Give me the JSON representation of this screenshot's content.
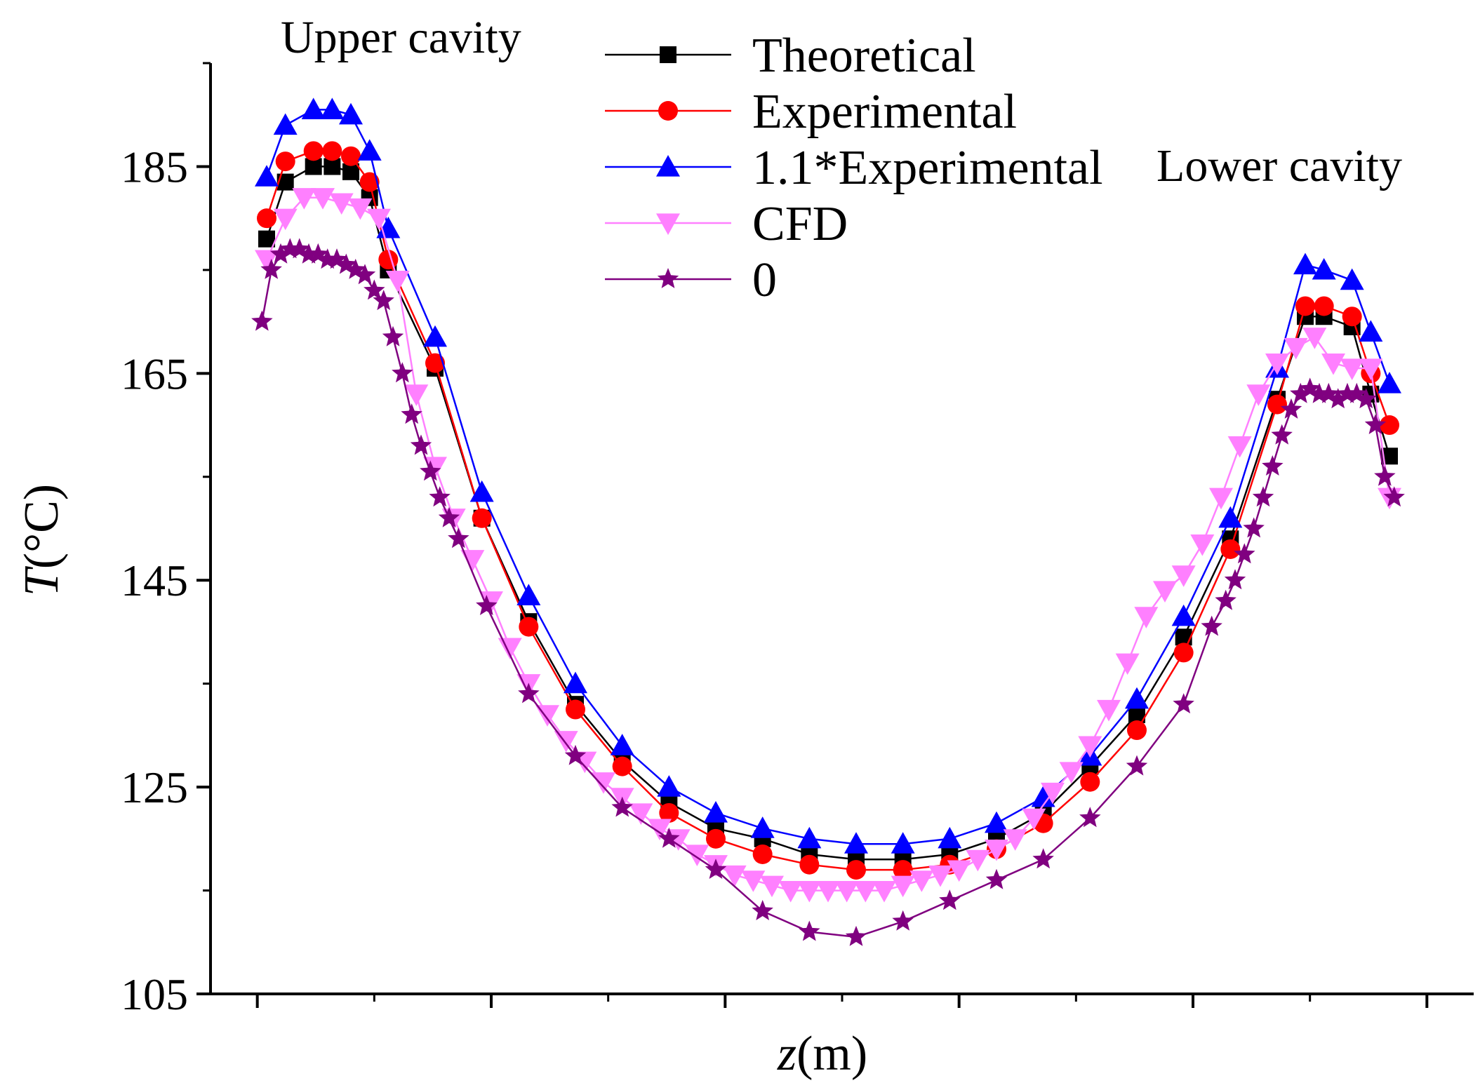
{
  "chart_data": {
    "type": "line",
    "title": "",
    "xlabel": {
      "italic": "z",
      "rest": "(m)"
    },
    "ylabel": {
      "italic": "T",
      "rest": "(°C)"
    },
    "ylim": [
      105,
      195
    ],
    "yticks": [
      105,
      125,
      145,
      165,
      185
    ],
    "xlim": [
      -0.05,
      1.3
    ],
    "x_tick_labels_visible": false,
    "annotations": [
      {
        "text": "Upper cavity",
        "position": "top-left"
      },
      {
        "text": "Lower cavity",
        "position": "top-right"
      }
    ],
    "legend_position": "top-center",
    "colors": {
      "Theoretical": "#000000",
      "Experimental": "#ff0000",
      "1.1*Experimental": "#0000ff",
      "CFD": "#ff80ff",
      "0": "#800080"
    },
    "series": [
      {
        "name": "Theoretical",
        "marker": "square",
        "x": [
          0.01,
          0.03,
          0.06,
          0.08,
          0.1,
          0.12,
          0.14,
          0.19,
          0.24,
          0.29,
          0.34,
          0.39,
          0.44,
          0.49,
          0.54,
          0.59,
          0.64,
          0.69,
          0.74,
          0.79,
          0.84,
          0.89,
          0.94,
          0.99,
          1.04,
          1.09,
          1.12,
          1.14,
          1.17,
          1.19,
          1.21
        ],
        "values": [
          178,
          183.5,
          185,
          185,
          184.5,
          182,
          175,
          165.5,
          151,
          141,
          133,
          127.5,
          123.5,
          121,
          120,
          118.5,
          118,
          118,
          118.5,
          120,
          122.5,
          127,
          132,
          139.5,
          149,
          162.5,
          170.5,
          170.5,
          169.5,
          163,
          157
        ]
      },
      {
        "name": "Experimental",
        "marker": "circle",
        "x": [
          0.01,
          0.03,
          0.06,
          0.08,
          0.1,
          0.12,
          0.14,
          0.19,
          0.24,
          0.29,
          0.34,
          0.39,
          0.44,
          0.49,
          0.54,
          0.59,
          0.64,
          0.69,
          0.74,
          0.79,
          0.84,
          0.89,
          0.94,
          0.99,
          1.04,
          1.09,
          1.12,
          1.14,
          1.17,
          1.19,
          1.21
        ],
        "values": [
          180,
          185.5,
          186.5,
          186.5,
          186,
          183.5,
          176,
          166,
          151,
          140.5,
          132.5,
          127,
          122.5,
          120,
          118.5,
          117.5,
          117,
          117,
          117.5,
          119,
          121.5,
          125.5,
          130.5,
          138,
          148,
          162,
          171.5,
          171.5,
          170.5,
          165,
          160
        ]
      },
      {
        "name": "1.1*Experimental",
        "marker": "triangle-up",
        "x": [
          0.01,
          0.03,
          0.06,
          0.08,
          0.1,
          0.12,
          0.14,
          0.19,
          0.24,
          0.29,
          0.34,
          0.39,
          0.44,
          0.49,
          0.54,
          0.59,
          0.64,
          0.69,
          0.74,
          0.79,
          0.84,
          0.89,
          0.94,
          0.99,
          1.04,
          1.09,
          1.12,
          1.14,
          1.17,
          1.19,
          1.21
        ],
        "values": [
          184,
          189,
          190.5,
          190.5,
          190,
          186.5,
          179,
          168.5,
          153.5,
          143.5,
          135,
          129,
          125,
          122.5,
          121,
          120,
          119.5,
          119.5,
          120,
          121.5,
          124,
          128,
          133.5,
          141.5,
          151,
          165.5,
          175.5,
          175,
          174,
          169,
          164
        ]
      },
      {
        "name": "CFD",
        "marker": "triangle-down",
        "x": [
          0.01,
          0.03,
          0.05,
          0.07,
          0.09,
          0.11,
          0.13,
          0.15,
          0.17,
          0.19,
          0.21,
          0.23,
          0.25,
          0.27,
          0.29,
          0.31,
          0.33,
          0.35,
          0.37,
          0.39,
          0.41,
          0.43,
          0.45,
          0.47,
          0.49,
          0.51,
          0.53,
          0.55,
          0.57,
          0.59,
          0.61,
          0.63,
          0.65,
          0.67,
          0.69,
          0.71,
          0.73,
          0.75,
          0.77,
          0.79,
          0.81,
          0.83,
          0.85,
          0.87,
          0.89,
          0.91,
          0.93,
          0.95,
          0.97,
          0.99,
          1.01,
          1.03,
          1.05,
          1.07,
          1.09,
          1.11,
          1.13,
          1.15,
          1.17,
          1.19,
          1.21
        ],
        "values": [
          176,
          180,
          182,
          182,
          181.5,
          181,
          180,
          174,
          163,
          156,
          151,
          147,
          143,
          138.5,
          135,
          132,
          129.5,
          127.5,
          125.5,
          124,
          122.5,
          121,
          120,
          118.5,
          117.5,
          116.5,
          116,
          115.5,
          115,
          115,
          115,
          115,
          115,
          115,
          115.5,
          116,
          116.5,
          117,
          118,
          119,
          120,
          122,
          124.5,
          126.5,
          129,
          132.5,
          137,
          141.5,
          144,
          145.5,
          148.5,
          153,
          158,
          163,
          166,
          167.5,
          168.5,
          166,
          165.5,
          165.5,
          153
        ]
      },
      {
        "name": "0",
        "marker": "star",
        "x": [
          0.005,
          0.015,
          0.025,
          0.035,
          0.045,
          0.055,
          0.065,
          0.075,
          0.085,
          0.095,
          0.105,
          0.115,
          0.125,
          0.135,
          0.145,
          0.155,
          0.165,
          0.175,
          0.185,
          0.195,
          0.205,
          0.215,
          0.245,
          0.29,
          0.34,
          0.39,
          0.44,
          0.49,
          0.54,
          0.59,
          0.64,
          0.69,
          0.74,
          0.79,
          0.84,
          0.89,
          0.94,
          0.99,
          1.02,
          1.035,
          1.045,
          1.055,
          1.065,
          1.075,
          1.085,
          1.095,
          1.105,
          1.115,
          1.125,
          1.135,
          1.145,
          1.155,
          1.165,
          1.175,
          1.185,
          1.195,
          1.205,
          1.215
        ],
        "values": [
          170,
          175,
          176.5,
          177,
          177,
          176.5,
          176.5,
          176,
          176,
          175.5,
          175,
          174.5,
          173,
          172,
          168.5,
          165,
          161,
          158,
          155.5,
          153,
          151,
          149,
          142.5,
          134,
          128,
          123,
          120,
          117,
          113,
          111,
          110.5,
          112,
          114,
          116,
          118,
          122,
          127,
          133,
          140.5,
          143,
          145,
          147.5,
          150,
          153,
          156,
          159,
          161.5,
          163,
          163.5,
          163,
          163,
          162.5,
          163,
          163,
          162.5,
          160,
          155,
          153
        ]
      }
    ]
  }
}
